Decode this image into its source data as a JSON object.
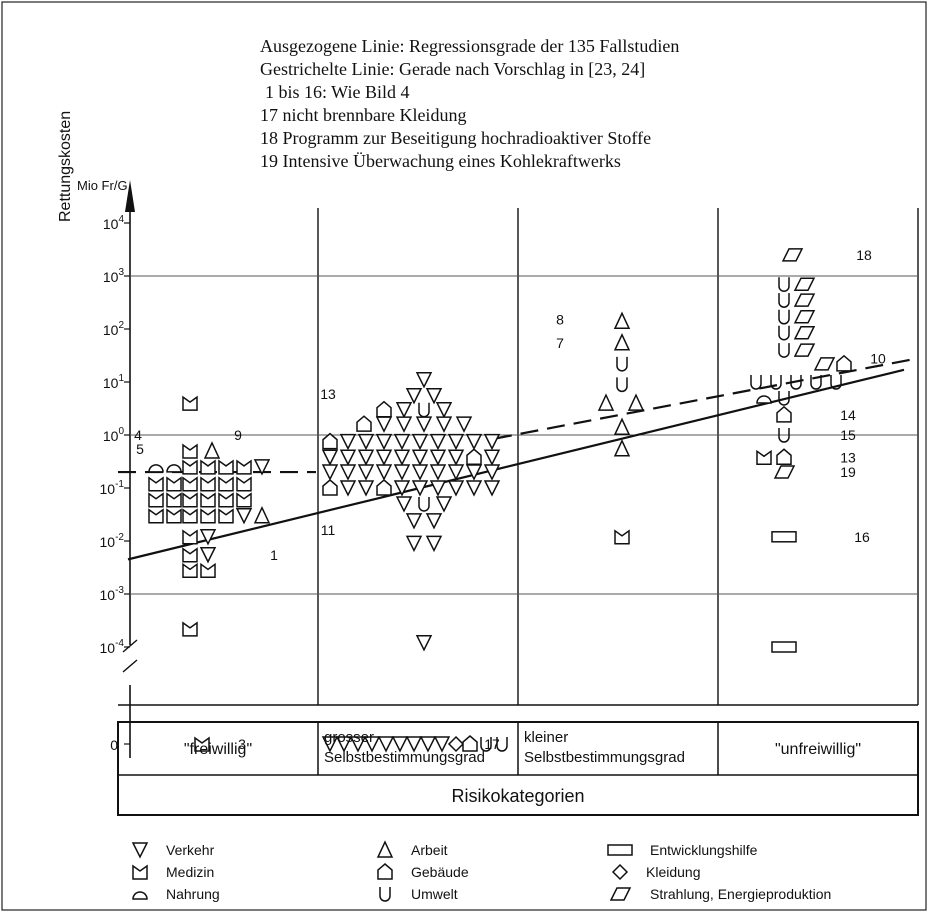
{
  "notes": [
    "Ausgezogene Linie: Regressionsgrade der 135 Fallstudien",
    "Gestrichelte Linie: Gerade nach Vorschlag in  [23, 24]",
    "1 bis 16: Wie Bild 4",
    "17  nicht brennbare Kleidung",
    "18  Programm zur Beseitigung hochradioaktiver Stoffe",
    "19  Intensive Überwachung eines Kohlekraftwerks"
  ],
  "chart_data": {
    "type": "scatter",
    "ylabel": "Rettungskosten",
    "yunit": "Mio Fr/G",
    "yscale": "log",
    "yticks": [
      {
        "label": "10",
        "exp": "4",
        "value": 10000
      },
      {
        "label": "10",
        "exp": "3",
        "value": 1000
      },
      {
        "label": "10",
        "exp": "2",
        "value": 100
      },
      {
        "label": "10",
        "exp": "1",
        "value": 10
      },
      {
        "label": "10",
        "exp": "0",
        "value": 1
      },
      {
        "label": "10",
        "exp": "-1",
        "value": 0.1
      },
      {
        "label": "10",
        "exp": "-2",
        "value": 0.01
      },
      {
        "label": "10",
        "exp": "-3",
        "value": 0.001
      },
      {
        "label": "10",
        "exp": "-4",
        "value": 0.0001
      },
      {
        "label": "0",
        "exp": "",
        "value": 0
      }
    ],
    "categories": [
      {
        "lines": [
          "\"freiwillig\""
        ]
      },
      {
        "lines": [
          "grosser",
          "Selbstbestimmungsgrad"
        ]
      },
      {
        "lines": [
          "kleiner",
          "Selbstbestimmungsgrad"
        ]
      },
      {
        "lines": [
          "\"unfreiwillig\""
        ]
      }
    ],
    "category_axis_title": "Risikokategorien",
    "gridlines_y": [
      1000,
      1,
      0.001
    ],
    "regression_solid": {
      "x": [
        0.05,
        3.93
      ],
      "y": [
        0.0045,
        17
      ]
    },
    "regression_dashed": [
      {
        "x": [
          0.0,
          0.99
        ],
        "y": [
          0.2,
          0.2
        ]
      },
      {
        "x": [
          1.88,
          3.98
        ],
        "y": [
          0.85,
          27
        ]
      }
    ],
    "legend": [
      {
        "type": "verkehr",
        "label": "Verkehr"
      },
      {
        "type": "arbeit",
        "label": "Arbeit"
      },
      {
        "type": "entwicklung",
        "label": "Entwicklungshilfe"
      },
      {
        "type": "medizin",
        "label": "Medizin"
      },
      {
        "type": "gebaeude",
        "label": "Gebäude"
      },
      {
        "type": "kleidung",
        "label": "Kleidung"
      },
      {
        "type": "nahrung",
        "label": "Nahrung"
      },
      {
        "type": "umwelt",
        "label": "Umwelt"
      },
      {
        "type": "strahlung",
        "label": "Strahlung, Energieproduktion"
      }
    ],
    "points": [
      {
        "x": 0.36,
        "y": 4,
        "type": "medizin"
      },
      {
        "x": 0.19,
        "y": 0.25,
        "type": "nahrung"
      },
      {
        "x": 0.28,
        "y": 0.25,
        "type": "nahrung"
      },
      {
        "x": 0.36,
        "y": 0.5,
        "type": "medizin"
      },
      {
        "x": 0.47,
        "y": 0.5,
        "type": "arbeit"
      },
      {
        "x": 0.36,
        "y": 0.25,
        "type": "medizin"
      },
      {
        "x": 0.45,
        "y": 0.25,
        "type": "medizin"
      },
      {
        "x": 0.54,
        "y": 0.25,
        "type": "medizin"
      },
      {
        "x": 0.63,
        "y": 0.25,
        "type": "medizin"
      },
      {
        "x": 0.72,
        "y": 0.25,
        "type": "verkehr"
      },
      {
        "x": 0.19,
        "y": 0.12,
        "type": "medizin"
      },
      {
        "x": 0.28,
        "y": 0.12,
        "type": "medizin"
      },
      {
        "x": 0.36,
        "y": 0.12,
        "type": "medizin"
      },
      {
        "x": 0.45,
        "y": 0.12,
        "type": "medizin"
      },
      {
        "x": 0.54,
        "y": 0.12,
        "type": "medizin"
      },
      {
        "x": 0.63,
        "y": 0.12,
        "type": "medizin"
      },
      {
        "x": 0.19,
        "y": 0.06,
        "type": "medizin"
      },
      {
        "x": 0.28,
        "y": 0.06,
        "type": "medizin"
      },
      {
        "x": 0.36,
        "y": 0.06,
        "type": "medizin"
      },
      {
        "x": 0.45,
        "y": 0.06,
        "type": "medizin"
      },
      {
        "x": 0.54,
        "y": 0.06,
        "type": "medizin"
      },
      {
        "x": 0.63,
        "y": 0.06,
        "type": "medizin"
      },
      {
        "x": 0.19,
        "y": 0.03,
        "type": "medizin"
      },
      {
        "x": 0.28,
        "y": 0.03,
        "type": "medizin"
      },
      {
        "x": 0.36,
        "y": 0.03,
        "type": "medizin"
      },
      {
        "x": 0.45,
        "y": 0.03,
        "type": "medizin"
      },
      {
        "x": 0.54,
        "y": 0.03,
        "type": "medizin"
      },
      {
        "x": 0.63,
        "y": 0.03,
        "type": "verkehr"
      },
      {
        "x": 0.72,
        "y": 0.03,
        "type": "arbeit"
      },
      {
        "x": 0.36,
        "y": 0.012,
        "type": "medizin"
      },
      {
        "x": 0.45,
        "y": 0.012,
        "type": "verkehr"
      },
      {
        "x": 0.36,
        "y": 0.0055,
        "type": "medizin"
      },
      {
        "x": 0.45,
        "y": 0.0055,
        "type": "verkehr"
      },
      {
        "x": 0.36,
        "y": 0.0028,
        "type": "medizin"
      },
      {
        "x": 0.45,
        "y": 0.0028,
        "type": "medizin"
      },
      {
        "x": 0.36,
        "y": 0.00022,
        "type": "medizin"
      },
      {
        "x": 0.42,
        "y": 0,
        "type": "medizin"
      },
      {
        "x": 1.53,
        "y": 11,
        "type": "verkehr"
      },
      {
        "x": 1.48,
        "y": 5.5,
        "type": "verkehr"
      },
      {
        "x": 1.58,
        "y": 5.5,
        "type": "verkehr"
      },
      {
        "x": 1.33,
        "y": 3,
        "type": "gebaeude"
      },
      {
        "x": 1.43,
        "y": 3,
        "type": "verkehr"
      },
      {
        "x": 1.53,
        "y": 3,
        "type": "umwelt"
      },
      {
        "x": 1.63,
        "y": 3,
        "type": "verkehr"
      },
      {
        "x": 1.23,
        "y": 1.6,
        "type": "gebaeude"
      },
      {
        "x": 1.33,
        "y": 1.6,
        "type": "verkehr"
      },
      {
        "x": 1.43,
        "y": 1.6,
        "type": "verkehr"
      },
      {
        "x": 1.53,
        "y": 1.6,
        "type": "verkehr"
      },
      {
        "x": 1.63,
        "y": 1.6,
        "type": "verkehr"
      },
      {
        "x": 1.73,
        "y": 1.6,
        "type": "verkehr"
      },
      {
        "x": 1.06,
        "y": 0.75,
        "type": "gebaeude"
      },
      {
        "x": 1.15,
        "y": 0.75,
        "type": "verkehr"
      },
      {
        "x": 1.24,
        "y": 0.75,
        "type": "verkehr"
      },
      {
        "x": 1.33,
        "y": 0.75,
        "type": "verkehr"
      },
      {
        "x": 1.42,
        "y": 0.75,
        "type": "verkehr"
      },
      {
        "x": 1.51,
        "y": 0.75,
        "type": "verkehr"
      },
      {
        "x": 1.6,
        "y": 0.75,
        "type": "verkehr"
      },
      {
        "x": 1.69,
        "y": 0.75,
        "type": "verkehr"
      },
      {
        "x": 1.78,
        "y": 0.75,
        "type": "verkehr"
      },
      {
        "x": 1.87,
        "y": 0.75,
        "type": "verkehr"
      },
      {
        "x": 1.06,
        "y": 0.38,
        "type": "verkehr"
      },
      {
        "x": 1.15,
        "y": 0.38,
        "type": "verkehr"
      },
      {
        "x": 1.24,
        "y": 0.38,
        "type": "verkehr"
      },
      {
        "x": 1.33,
        "y": 0.38,
        "type": "verkehr"
      },
      {
        "x": 1.42,
        "y": 0.38,
        "type": "verkehr"
      },
      {
        "x": 1.51,
        "y": 0.38,
        "type": "verkehr"
      },
      {
        "x": 1.6,
        "y": 0.38,
        "type": "verkehr"
      },
      {
        "x": 1.69,
        "y": 0.38,
        "type": "verkehr"
      },
      {
        "x": 1.78,
        "y": 0.38,
        "type": "gebaeude"
      },
      {
        "x": 1.87,
        "y": 0.38,
        "type": "verkehr"
      },
      {
        "x": 1.06,
        "y": 0.2,
        "type": "verkehr"
      },
      {
        "x": 1.15,
        "y": 0.2,
        "type": "verkehr"
      },
      {
        "x": 1.24,
        "y": 0.2,
        "type": "verkehr"
      },
      {
        "x": 1.33,
        "y": 0.2,
        "type": "verkehr"
      },
      {
        "x": 1.42,
        "y": 0.2,
        "type": "verkehr"
      },
      {
        "x": 1.51,
        "y": 0.2,
        "type": "verkehr"
      },
      {
        "x": 1.6,
        "y": 0.2,
        "type": "verkehr"
      },
      {
        "x": 1.69,
        "y": 0.2,
        "type": "verkehr"
      },
      {
        "x": 1.78,
        "y": 0.2,
        "type": "verkehr"
      },
      {
        "x": 1.87,
        "y": 0.2,
        "type": "verkehr"
      },
      {
        "x": 1.06,
        "y": 0.1,
        "type": "gebaeude"
      },
      {
        "x": 1.15,
        "y": 0.1,
        "type": "verkehr"
      },
      {
        "x": 1.24,
        "y": 0.1,
        "type": "verkehr"
      },
      {
        "x": 1.33,
        "y": 0.1,
        "type": "gebaeude"
      },
      {
        "x": 1.42,
        "y": 0.1,
        "type": "verkehr"
      },
      {
        "x": 1.51,
        "y": 0.1,
        "type": "verkehr"
      },
      {
        "x": 1.6,
        "y": 0.1,
        "type": "verkehr"
      },
      {
        "x": 1.69,
        "y": 0.1,
        "type": "verkehr"
      },
      {
        "x": 1.78,
        "y": 0.1,
        "type": "verkehr"
      },
      {
        "x": 1.87,
        "y": 0.1,
        "type": "verkehr"
      },
      {
        "x": 1.43,
        "y": 0.05,
        "type": "verkehr"
      },
      {
        "x": 1.53,
        "y": 0.05,
        "type": "umwelt"
      },
      {
        "x": 1.63,
        "y": 0.05,
        "type": "verkehr"
      },
      {
        "x": 1.48,
        "y": 0.024,
        "type": "verkehr"
      },
      {
        "x": 1.58,
        "y": 0.024,
        "type": "verkehr"
      },
      {
        "x": 1.48,
        "y": 0.009,
        "type": "verkehr"
      },
      {
        "x": 1.58,
        "y": 0.009,
        "type": "verkehr"
      },
      {
        "x": 1.53,
        "y": 0.00012,
        "type": "verkehr"
      },
      {
        "x": 1.06,
        "y": 0,
        "type": "verkehr"
      },
      {
        "x": 1.13,
        "y": 0,
        "type": "verkehr"
      },
      {
        "x": 1.2,
        "y": 0,
        "type": "verkehr"
      },
      {
        "x": 1.27,
        "y": 0,
        "type": "verkehr"
      },
      {
        "x": 1.34,
        "y": 0,
        "type": "verkehr"
      },
      {
        "x": 1.41,
        "y": 0,
        "type": "verkehr"
      },
      {
        "x": 1.48,
        "y": 0,
        "type": "verkehr"
      },
      {
        "x": 1.55,
        "y": 0,
        "type": "verkehr"
      },
      {
        "x": 1.62,
        "y": 0,
        "type": "verkehr"
      },
      {
        "x": 1.69,
        "y": 0,
        "type": "kleidung"
      },
      {
        "x": 1.76,
        "y": 0,
        "type": "gebaeude"
      },
      {
        "x": 1.84,
        "y": 0,
        "type": "umwelt"
      },
      {
        "x": 1.92,
        "y": 0,
        "type": "umwelt"
      },
      {
        "x": 2.52,
        "y": 140,
        "type": "arbeit"
      },
      {
        "x": 2.52,
        "y": 55,
        "type": "arbeit"
      },
      {
        "x": 2.52,
        "y": 22,
        "type": "umwelt"
      },
      {
        "x": 2.52,
        "y": 9,
        "type": "umwelt"
      },
      {
        "x": 2.44,
        "y": 4,
        "type": "arbeit"
      },
      {
        "x": 2.59,
        "y": 4,
        "type": "arbeit"
      },
      {
        "x": 2.52,
        "y": 1.4,
        "type": "arbeit"
      },
      {
        "x": 2.52,
        "y": 0.55,
        "type": "arbeit"
      },
      {
        "x": 2.52,
        "y": 0.012,
        "type": "medizin"
      },
      {
        "x": 3.37,
        "y": 2500,
        "type": "strahlung"
      },
      {
        "x": 3.33,
        "y": 700,
        "type": "umwelt"
      },
      {
        "x": 3.43,
        "y": 700,
        "type": "strahlung"
      },
      {
        "x": 3.33,
        "y": 350,
        "type": "umwelt"
      },
      {
        "x": 3.43,
        "y": 350,
        "type": "strahlung"
      },
      {
        "x": 3.33,
        "y": 170,
        "type": "umwelt"
      },
      {
        "x": 3.43,
        "y": 170,
        "type": "strahlung"
      },
      {
        "x": 3.33,
        "y": 85,
        "type": "umwelt"
      },
      {
        "x": 3.43,
        "y": 85,
        "type": "strahlung"
      },
      {
        "x": 3.33,
        "y": 40,
        "type": "umwelt"
      },
      {
        "x": 3.43,
        "y": 40,
        "type": "strahlung"
      },
      {
        "x": 3.53,
        "y": 22,
        "type": "strahlung"
      },
      {
        "x": 3.63,
        "y": 22,
        "type": "gebaeude"
      },
      {
        "x": 3.19,
        "y": 10,
        "type": "umwelt"
      },
      {
        "x": 3.29,
        "y": 10,
        "type": "umwelt"
      },
      {
        "x": 3.39,
        "y": 10,
        "type": "umwelt"
      },
      {
        "x": 3.49,
        "y": 10,
        "type": "umwelt"
      },
      {
        "x": 3.59,
        "y": 10,
        "type": "umwelt"
      },
      {
        "x": 3.23,
        "y": 5,
        "type": "nahrung"
      },
      {
        "x": 3.33,
        "y": 5,
        "type": "umwelt"
      },
      {
        "x": 3.33,
        "y": 2.4,
        "type": "gebaeude"
      },
      {
        "x": 3.33,
        "y": 1,
        "type": "umwelt"
      },
      {
        "x": 3.23,
        "y": 0.38,
        "type": "medizin"
      },
      {
        "x": 3.33,
        "y": 0.38,
        "type": "gebaeude"
      },
      {
        "x": 3.33,
        "y": 0.2,
        "type": "strahlung"
      },
      {
        "x": 3.33,
        "y": 0.012,
        "type": "entwicklung"
      },
      {
        "x": 3.33,
        "y": 0.0001,
        "type": "entwicklung"
      }
    ],
    "annotations": [
      {
        "text": "4",
        "x": 0.1,
        "y": 1
      },
      {
        "text": "5",
        "x": 0.11,
        "y": 0.55
      },
      {
        "text": "9",
        "x": 0.6,
        "y": 1
      },
      {
        "text": "1",
        "x": 0.78,
        "y": 0.0055
      },
      {
        "text": "3",
        "x": 0.62,
        "y": 0
      },
      {
        "text": "13",
        "x": 1.05,
        "y": 6
      },
      {
        "text": "11",
        "x": 1.05,
        "y": 0.016
      },
      {
        "text": "17",
        "x": 1.87,
        "y": 0
      },
      {
        "text": "8",
        "x": 2.21,
        "y": 150
      },
      {
        "text": "7",
        "x": 2.21,
        "y": 55
      },
      {
        "text": "18",
        "x": 3.73,
        "y": 2500
      },
      {
        "text": "10",
        "x": 3.8,
        "y": 28
      },
      {
        "text": "14",
        "x": 3.65,
        "y": 2.4
      },
      {
        "text": "15",
        "x": 3.65,
        "y": 1
      },
      {
        "text": "13",
        "x": 3.65,
        "y": 0.38
      },
      {
        "text": "19",
        "x": 3.65,
        "y": 0.2
      },
      {
        "text": "16",
        "x": 3.72,
        "y": 0.012
      }
    ]
  }
}
